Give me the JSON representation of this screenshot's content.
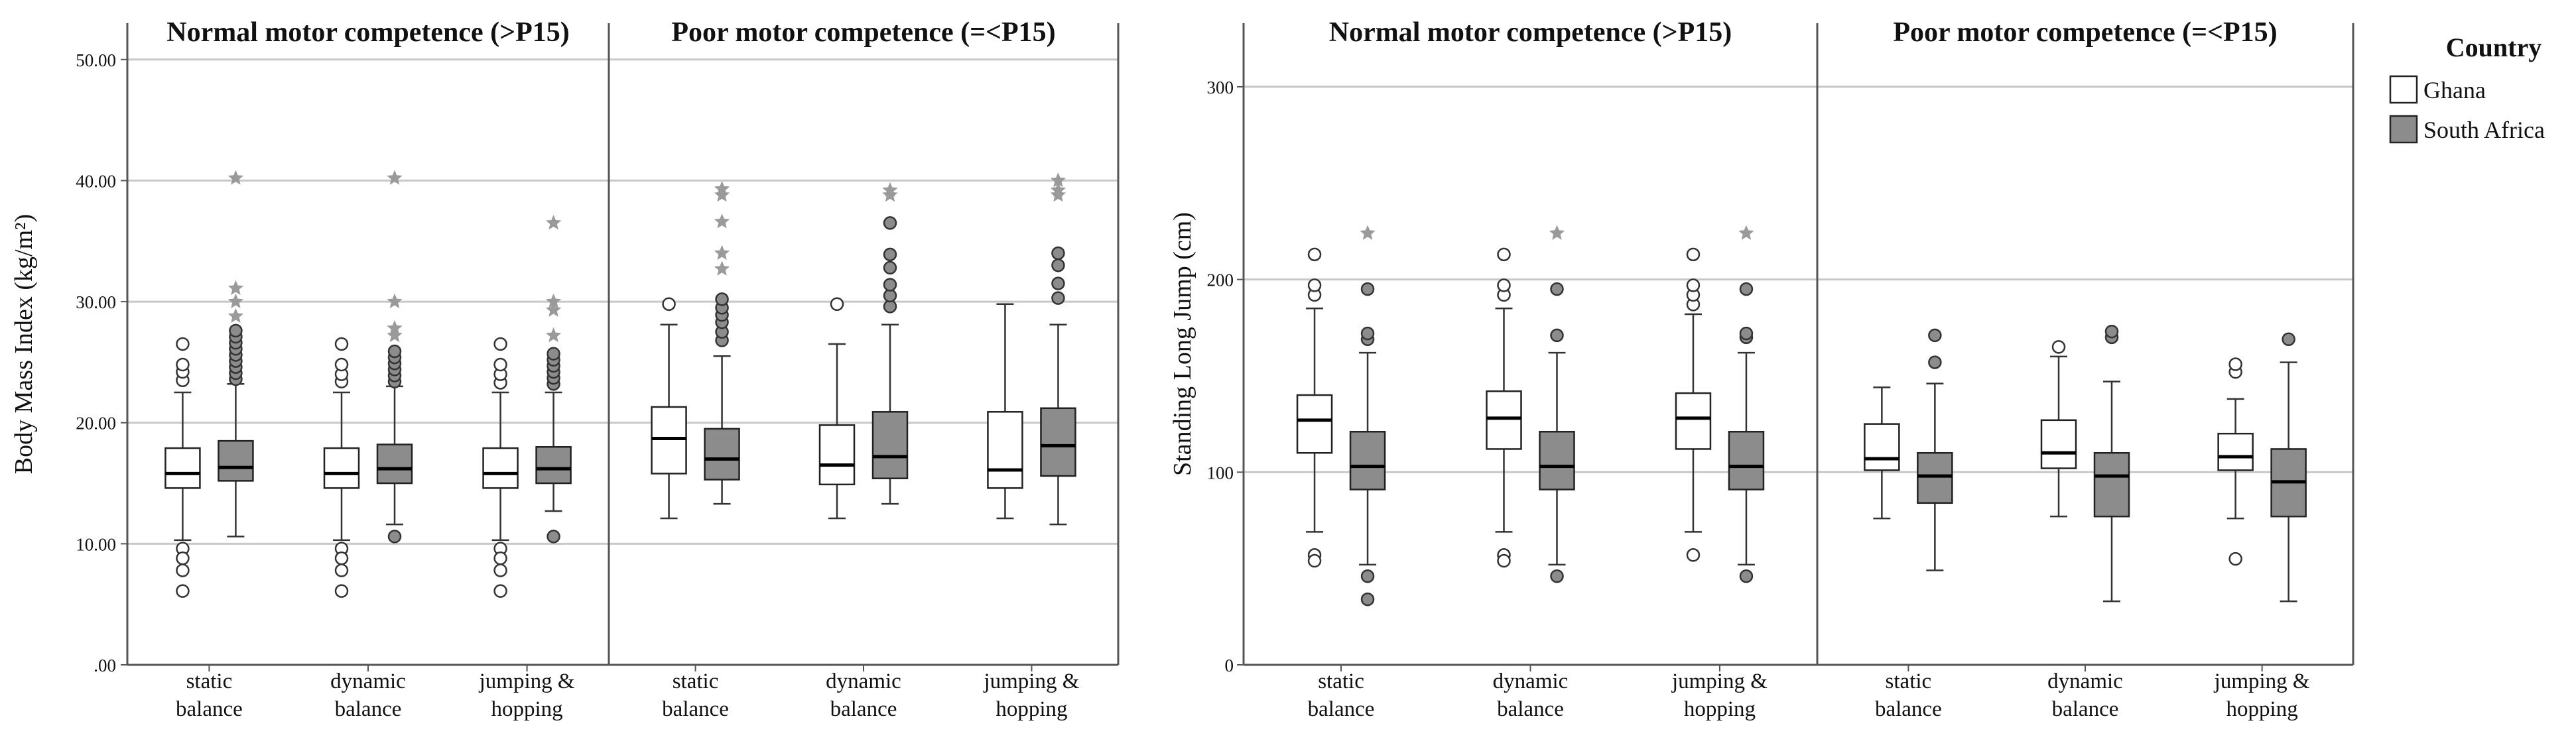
{
  "chart_data": [
    {
      "type": "boxplot",
      "ylabel": "Body Mass Index (kg/m²)",
      "ylim": [
        0,
        53
      ],
      "yticks": [
        0,
        10,
        20,
        30,
        40,
        50
      ],
      "ytick_labels": [
        ".00",
        "10.00",
        "20.00",
        "30.00",
        "40.00",
        "50.00"
      ],
      "grid": true,
      "categories": [
        [
          "static",
          "balance"
        ],
        [
          "dynamic",
          "balance"
        ],
        [
          "jumping &",
          "hopping"
        ]
      ],
      "panels": [
        {
          "title": "Normal motor competence (>P15)",
          "groups": [
            {
              "boxes": [
                {
                  "series": "Ghana",
                  "min": 10.3,
                  "q1": 14.6,
                  "median": 15.8,
                  "q3": 17.9,
                  "max": 22.5,
                  "outliers": [
                    23.5,
                    24.2,
                    24.8,
                    26.5,
                    9.6,
                    8.8,
                    7.8,
                    6.1
                  ],
                  "extremes": []
                },
                {
                  "series": "South Africa",
                  "min": 10.6,
                  "q1": 15.2,
                  "median": 16.3,
                  "q3": 18.5,
                  "max": 23.2,
                  "outliers": [
                    23.6,
                    24.1,
                    24.6,
                    25.1,
                    25.6,
                    26.1,
                    26.6,
                    27.1,
                    27.6
                  ],
                  "extremes": [
                    28.8,
                    30.0,
                    31.1,
                    40.2
                  ]
                }
              ]
            },
            {
              "boxes": [
                {
                  "series": "Ghana",
                  "min": 10.3,
                  "q1": 14.6,
                  "median": 15.8,
                  "q3": 17.9,
                  "max": 22.5,
                  "outliers": [
                    23.4,
                    24.0,
                    24.8,
                    26.5,
                    9.6,
                    8.8,
                    7.8,
                    6.1
                  ],
                  "extremes": []
                },
                {
                  "series": "South Africa",
                  "min": 11.6,
                  "q1": 15.0,
                  "median": 16.2,
                  "q3": 18.2,
                  "max": 23.0,
                  "outliers": [
                    23.4,
                    23.9,
                    24.4,
                    24.9,
                    25.4,
                    25.9,
                    10.6
                  ],
                  "extremes": [
                    27.2,
                    27.8,
                    30.0,
                    40.2
                  ]
                }
              ]
            },
            {
              "boxes": [
                {
                  "series": "Ghana",
                  "min": 10.3,
                  "q1": 14.6,
                  "median": 15.8,
                  "q3": 17.9,
                  "max": 22.5,
                  "outliers": [
                    23.3,
                    24.0,
                    24.8,
                    26.5,
                    9.6,
                    8.8,
                    7.8,
                    6.1
                  ],
                  "extremes": []
                },
                {
                  "series": "South Africa",
                  "min": 12.7,
                  "q1": 15.0,
                  "median": 16.2,
                  "q3": 18.0,
                  "max": 22.5,
                  "outliers": [
                    23.2,
                    23.7,
                    24.2,
                    24.7,
                    25.2,
                    25.7,
                    10.6
                  ],
                  "extremes": [
                    27.2,
                    29.3,
                    30.0,
                    36.5
                  ]
                }
              ]
            }
          ]
        },
        {
          "title": "Poor motor competence (=<P15)",
          "groups": [
            {
              "boxes": [
                {
                  "series": "Ghana",
                  "min": 12.1,
                  "q1": 15.8,
                  "median": 18.7,
                  "q3": 21.3,
                  "max": 28.1,
                  "outliers": [
                    29.8
                  ],
                  "extremes": []
                },
                {
                  "series": "South Africa",
                  "min": 13.3,
                  "q1": 15.3,
                  "median": 17.0,
                  "q3": 19.5,
                  "max": 25.5,
                  "outliers": [
                    26.8,
                    27.5,
                    28.3,
                    28.9,
                    29.5,
                    30.2
                  ],
                  "extremes": [
                    32.7,
                    34.0,
                    36.6,
                    38.8,
                    39.3
                  ]
                }
              ]
            },
            {
              "boxes": [
                {
                  "series": "Ghana",
                  "min": 12.1,
                  "q1": 14.9,
                  "median": 16.5,
                  "q3": 19.8,
                  "max": 26.5,
                  "outliers": [
                    29.8
                  ],
                  "extremes": []
                },
                {
                  "series": "South Africa",
                  "min": 13.3,
                  "q1": 15.4,
                  "median": 17.2,
                  "q3": 20.9,
                  "max": 28.1,
                  "outliers": [
                    29.6,
                    30.5,
                    31.4,
                    32.8,
                    33.9,
                    36.5
                  ],
                  "extremes": [
                    38.8,
                    39.2
                  ]
                }
              ]
            },
            {
              "boxes": [
                {
                  "series": "Ghana",
                  "min": 12.1,
                  "q1": 14.6,
                  "median": 16.1,
                  "q3": 20.9,
                  "max": 29.8,
                  "outliers": [],
                  "extremes": []
                },
                {
                  "series": "South Africa",
                  "min": 11.6,
                  "q1": 15.6,
                  "median": 18.1,
                  "q3": 21.2,
                  "max": 28.1,
                  "outliers": [
                    30.3,
                    31.5,
                    33.0,
                    34.0
                  ],
                  "extremes": [
                    38.8,
                    39.2,
                    40.0
                  ]
                }
              ]
            }
          ]
        }
      ]
    },
    {
      "type": "boxplot",
      "ylabel": "Standing Long Jump (cm)",
      "ylim": [
        0,
        333
      ],
      "yticks": [
        0,
        100,
        200,
        300
      ],
      "ytick_labels": [
        "0",
        "100",
        "200",
        "300"
      ],
      "grid": true,
      "categories": [
        [
          "static",
          "balance"
        ],
        [
          "dynamic",
          "balance"
        ],
        [
          "jumping &",
          "hopping"
        ]
      ],
      "panels": [
        {
          "title": "Normal motor competence (>P15)",
          "groups": [
            {
              "boxes": [
                {
                  "series": "Ghana",
                  "min": 69,
                  "q1": 110,
                  "median": 127,
                  "q3": 140,
                  "max": 185,
                  "outliers": [
                    192,
                    197,
                    213,
                    57,
                    54
                  ],
                  "extremes": []
                },
                {
                  "series": "South Africa",
                  "min": 52,
                  "q1": 91,
                  "median": 103,
                  "q3": 121,
                  "max": 162,
                  "outliers": [
                    169,
                    172,
                    195,
                    46,
                    34
                  ],
                  "extremes": [
                    224
                  ]
                }
              ]
            },
            {
              "boxes": [
                {
                  "series": "Ghana",
                  "min": 69,
                  "q1": 112,
                  "median": 128,
                  "q3": 142,
                  "max": 185,
                  "outliers": [
                    192,
                    197,
                    213,
                    57,
                    54
                  ],
                  "extremes": []
                },
                {
                  "series": "South Africa",
                  "min": 52,
                  "q1": 91,
                  "median": 103,
                  "q3": 121,
                  "max": 162,
                  "outliers": [
                    171,
                    195,
                    46
                  ],
                  "extremes": [
                    224
                  ]
                }
              ]
            },
            {
              "boxes": [
                {
                  "series": "Ghana",
                  "min": 69,
                  "q1": 112,
                  "median": 128,
                  "q3": 141,
                  "max": 182,
                  "outliers": [
                    187,
                    192,
                    197,
                    213,
                    57
                  ],
                  "extremes": []
                },
                {
                  "series": "South Africa",
                  "min": 52,
                  "q1": 91,
                  "median": 103,
                  "q3": 121,
                  "max": 162,
                  "outliers": [
                    170,
                    172,
                    195,
                    46
                  ],
                  "extremes": [
                    224
                  ]
                }
              ]
            }
          ]
        },
        {
          "title": "Poor motor competence (=<P15)",
          "groups": [
            {
              "boxes": [
                {
                  "series": "Ghana",
                  "min": 76,
                  "q1": 101,
                  "median": 107,
                  "q3": 125,
                  "max": 144,
                  "outliers": [],
                  "extremes": []
                },
                {
                  "series": "South Africa",
                  "min": 49,
                  "q1": 84,
                  "median": 98,
                  "q3": 110,
                  "max": 146,
                  "outliers": [
                    157,
                    171
                  ],
                  "extremes": []
                }
              ]
            },
            {
              "boxes": [
                {
                  "series": "Ghana",
                  "min": 77,
                  "q1": 102,
                  "median": 110,
                  "q3": 127,
                  "max": 160,
                  "outliers": [
                    165
                  ],
                  "extremes": []
                },
                {
                  "series": "South Africa",
                  "min": 33,
                  "q1": 77,
                  "median": 98,
                  "q3": 110,
                  "max": 147,
                  "outliers": [
                    170,
                    173
                  ],
                  "extremes": []
                }
              ]
            },
            {
              "boxes": [
                {
                  "series": "Ghana",
                  "min": 76,
                  "q1": 101,
                  "median": 108,
                  "q3": 120,
                  "max": 138,
                  "outliers": [
                    152,
                    156,
                    55
                  ],
                  "extremes": []
                },
                {
                  "series": "South Africa",
                  "min": 33,
                  "q1": 77,
                  "median": 95,
                  "q3": 112,
                  "max": 157,
                  "outliers": [
                    169
                  ],
                  "extremes": []
                }
              ]
            }
          ]
        }
      ]
    }
  ],
  "legend": {
    "title": "Country",
    "items": [
      {
        "label": "Ghana",
        "color": "#ffffff"
      },
      {
        "label": "South Africa",
        "color": "#8c8c8c"
      }
    ]
  },
  "colors": {
    "ghana_fill": "#ffffff",
    "south_africa_fill": "#8c8c8c",
    "extreme_marker": "#9a9a9a",
    "grid": "#c8c8c8",
    "frame": "#555555"
  }
}
